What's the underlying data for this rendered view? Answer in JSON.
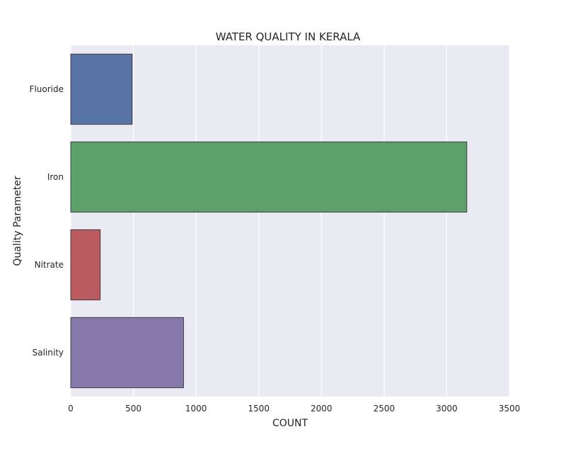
{
  "chart_data": {
    "type": "bar",
    "orientation": "horizontal",
    "title": "WATER QUALITY IN KERALA",
    "xlabel": "COUNT",
    "ylabel": "Quality Parameter",
    "categories": [
      "Fluoride",
      "Iron",
      "Nitrate",
      "Salinity"
    ],
    "values": [
      490,
      3160,
      235,
      900
    ],
    "xlim": [
      0,
      3500
    ],
    "x_ticks": [
      0,
      500,
      1000,
      1500,
      2000,
      2500,
      3000,
      3500
    ],
    "grid": true,
    "colors": {
      "background": "#eaeaf2",
      "grid": "#ffffff",
      "bars": [
        "#5874a6",
        "#5ea06c",
        "#bc5b5f",
        "#857aab"
      ],
      "bar_edge": "#3f3f3f"
    }
  }
}
